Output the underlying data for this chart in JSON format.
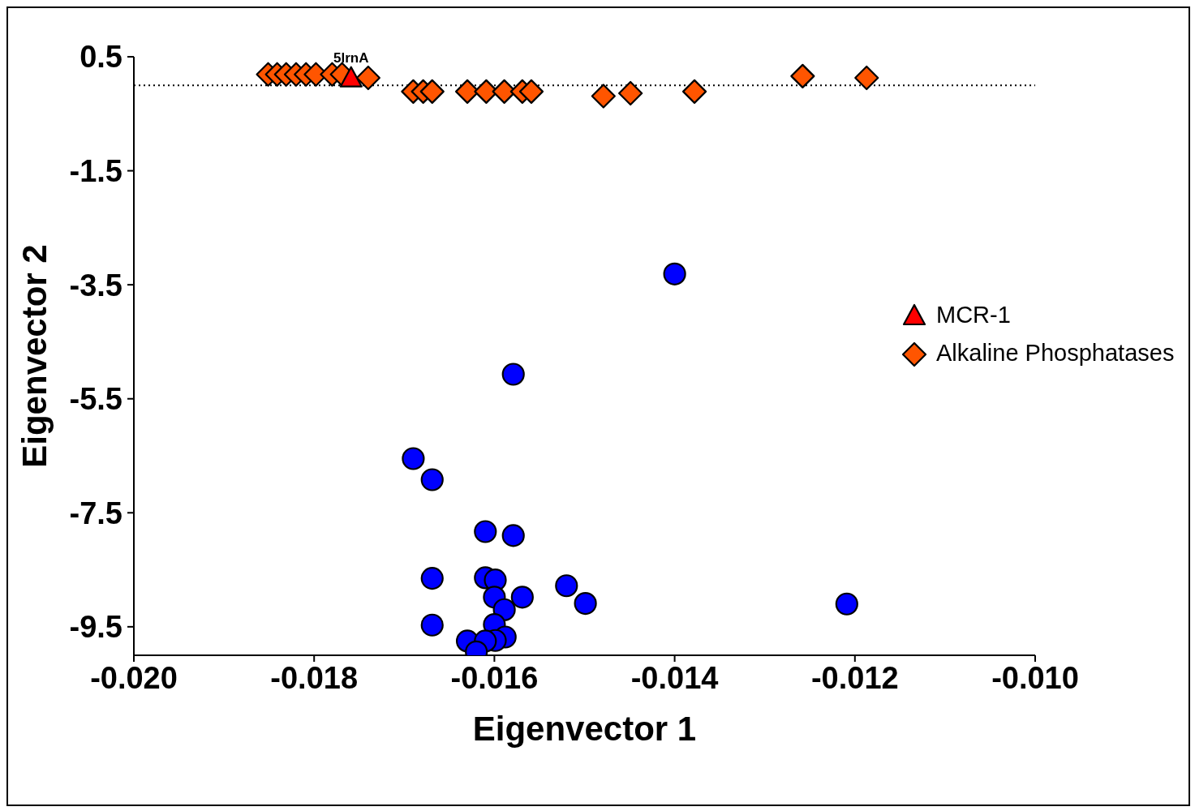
{
  "chart_data": {
    "type": "scatter",
    "xlabel": "Eigenvector 1",
    "ylabel": "Eigenvector 2",
    "xlim": [
      -0.02,
      -0.01
    ],
    "xticks": [
      {
        "value": -0.02,
        "label": "-0.020"
      },
      {
        "value": -0.018,
        "label": "-0.018"
      },
      {
        "value": -0.016,
        "label": "-0.016"
      },
      {
        "value": -0.014,
        "label": "-0.014"
      },
      {
        "value": -0.012,
        "label": "-0.012"
      },
      {
        "value": -0.01,
        "label": "-0.010"
      }
    ],
    "ylim": [
      -10,
      0.5
    ],
    "yticks": [
      0.5,
      -1.5,
      -3.5,
      -5.5,
      -7.5,
      -9.5
    ],
    "grid": false,
    "legend": "right",
    "ref_lines": [
      {
        "axis": "y",
        "value": 0,
        "line_style": "dotted",
        "color": "#000000"
      }
    ],
    "annotations": [
      {
        "text": "5lrnA",
        "x": -0.01759,
        "y": 0.12
      }
    ],
    "series": [
      {
        "color": "#0000ff",
        "marker": "circle",
        "x": [
          -0.014,
          -0.01579,
          -0.0169,
          -0.01669,
          -0.0161,
          -0.01579,
          -0.01669,
          -0.0161,
          -0.01599,
          -0.0152,
          -0.01499,
          -0.016,
          -0.01569,
          -0.01589,
          -0.01669,
          -0.016,
          -0.01588,
          -0.01599,
          -0.0163,
          -0.0161,
          -0.0162,
          -0.01209
        ],
        "values": [
          -3.31,
          -5.07,
          -6.55,
          -6.92,
          -7.83,
          -7.9,
          -8.65,
          -8.64,
          -8.68,
          -8.78,
          -9.09,
          -8.98,
          -8.98,
          -9.2,
          -9.47,
          -9.46,
          -9.68,
          -9.74,
          -9.75,
          -9.75,
          -9.94,
          -9.1
        ]
      },
      {
        "name": "Alkaline Phosphatases",
        "color": "#ff5500",
        "marker": "diamond",
        "x": [
          -0.01851,
          -0.01841,
          -0.01831,
          -0.0182,
          -0.01809,
          -0.01798,
          -0.0178,
          -0.01769,
          -0.0174,
          -0.0169,
          -0.01679,
          -0.01669,
          -0.0163,
          -0.01609,
          -0.01589,
          -0.01569,
          -0.01559,
          -0.01479,
          -0.01449,
          -0.01378,
          -0.01258,
          -0.01187
        ],
        "values": [
          0.19,
          0.19,
          0.19,
          0.19,
          0.19,
          0.19,
          0.19,
          0.19,
          0.13,
          -0.11,
          -0.11,
          -0.11,
          -0.11,
          -0.11,
          -0.11,
          -0.11,
          -0.11,
          -0.19,
          -0.14,
          -0.11,
          0.16,
          0.13
        ]
      },
      {
        "name": "MCR-1",
        "color": "#ff0000",
        "marker": "triangle",
        "x": [
          -0.01759
        ],
        "values": [
          0.12
        ]
      }
    ]
  }
}
